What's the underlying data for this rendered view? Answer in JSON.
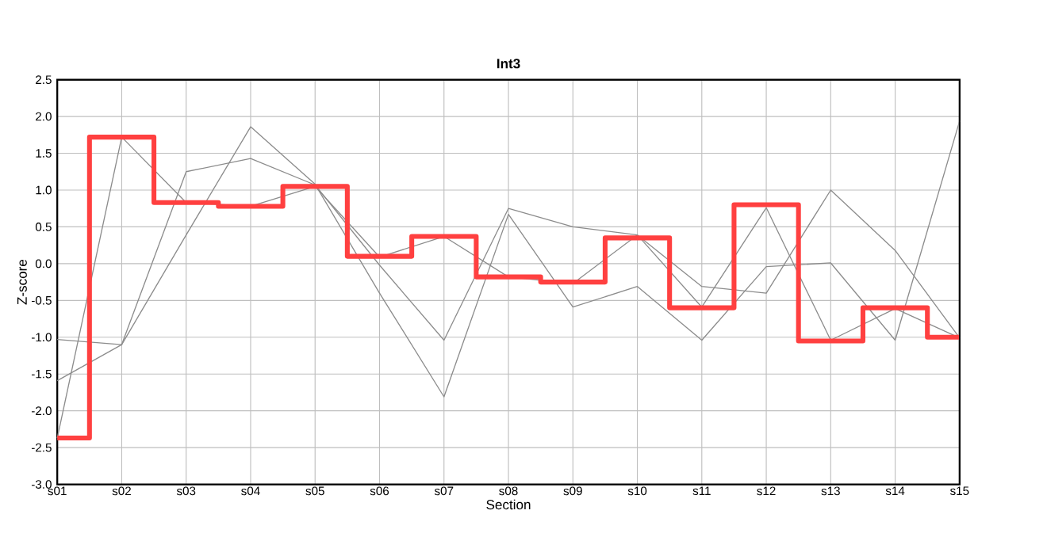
{
  "chart_data": {
    "type": "line",
    "title": "Int3",
    "xlabel": "Section",
    "ylabel": "Z-score",
    "categories": [
      "s01",
      "s02",
      "s03",
      "s04",
      "s05",
      "s06",
      "s07",
      "s08",
      "s09",
      "s10",
      "s11",
      "s12",
      "s13",
      "s14",
      "s15"
    ],
    "ylim": [
      -3,
      2.5
    ],
    "yticks": [
      {
        "value": -3,
        "label": "-3.0"
      },
      {
        "value": -2.5,
        "label": "-2.5"
      },
      {
        "value": -2,
        "label": "-2.0"
      },
      {
        "value": -1.5,
        "label": "-1.5"
      },
      {
        "value": -1,
        "label": "-1.0"
      },
      {
        "value": -0.5,
        "label": "-0.5"
      },
      {
        "value": 0,
        "label": "0.0"
      },
      {
        "value": 0.5,
        "label": "0.5"
      },
      {
        "value": 1,
        "label": "1.0"
      },
      {
        "value": 1.5,
        "label": "1.5"
      },
      {
        "value": 2,
        "label": "2.0"
      },
      {
        "value": 2.5,
        "label": "2.5"
      }
    ],
    "grid": true,
    "series": [
      {
        "color": "#8c8c8c",
        "values": [
          -2.37,
          1.72,
          0.83,
          0.78,
          1.05,
          0.09,
          0.37,
          -0.18,
          -0.27,
          0.39,
          -0.59,
          0.76,
          -1.04,
          -0.61,
          -1.01
        ]
      },
      {
        "color": "#8c8c8c",
        "values": [
          -1.59,
          -1.1,
          1.25,
          1.43,
          1.07,
          -0.02,
          -1.04,
          0.75,
          0.5,
          0.39,
          -0.31,
          -0.4,
          1.0,
          0.18,
          -1.01
        ]
      },
      {
        "color": "#8c8c8c",
        "values": [
          -1.03,
          -1.1,
          0.39,
          1.86,
          1.08,
          -0.4,
          -1.81,
          0.67,
          -0.59,
          -0.31,
          -1.04,
          -0.04,
          0.01,
          -1.04,
          1.94
        ]
      },
      {
        "type": "step",
        "color": "#ff4040",
        "values": [
          -2.37,
          1.72,
          0.83,
          0.78,
          1.05,
          0.1,
          0.37,
          -0.18,
          -0.25,
          0.35,
          -0.6,
          0.8,
          -1.05,
          -0.6,
          -1.0
        ]
      }
    ]
  }
}
